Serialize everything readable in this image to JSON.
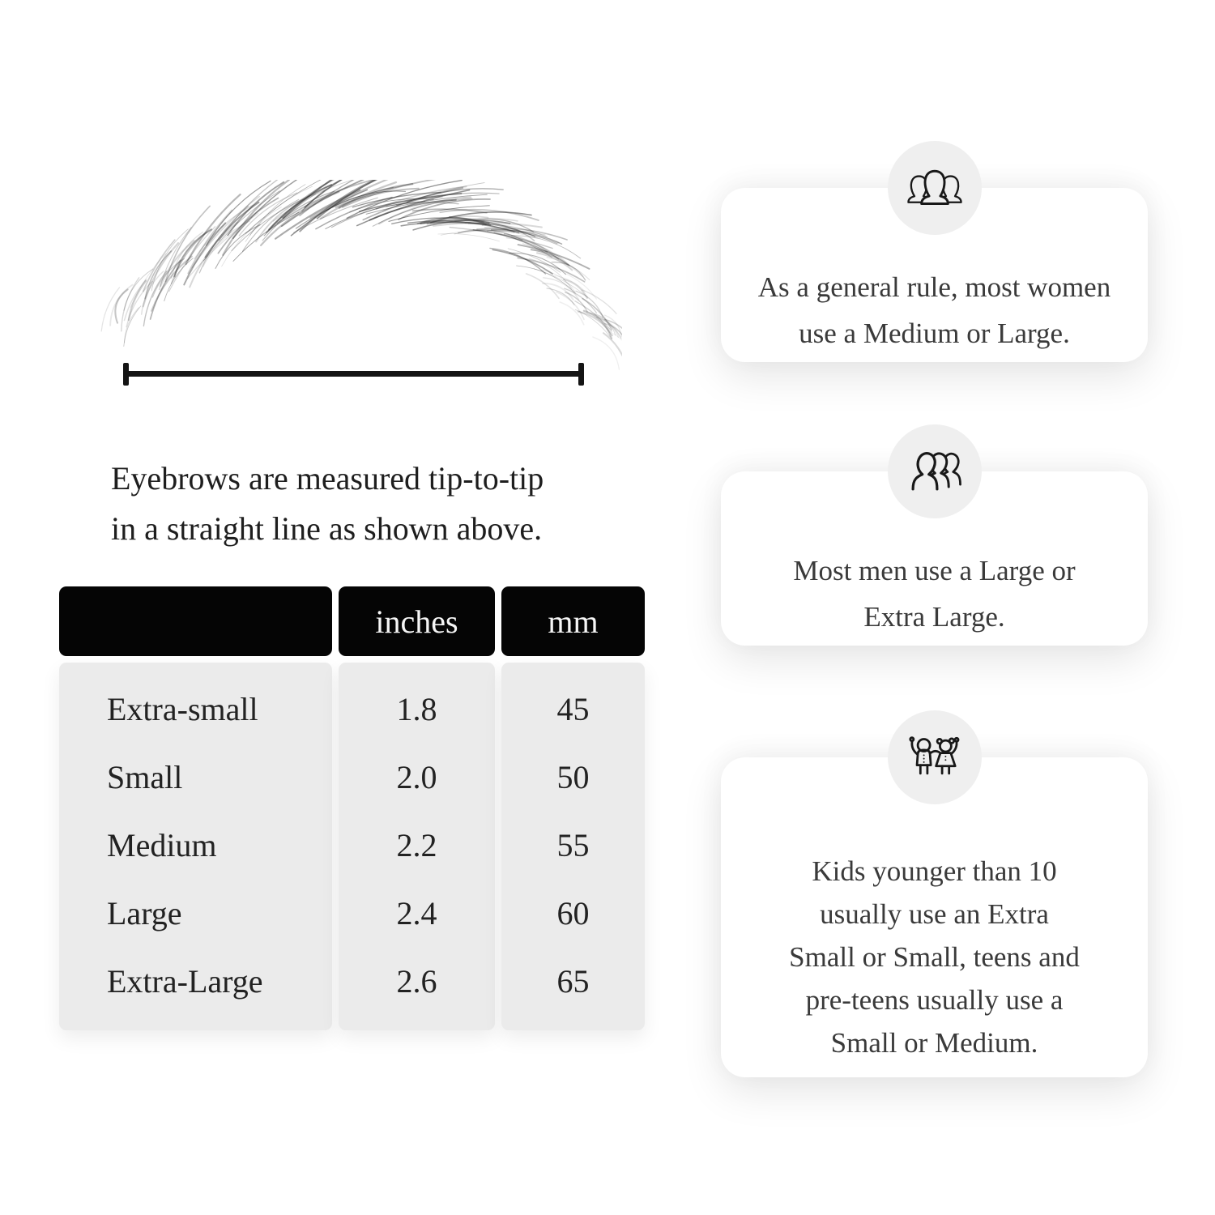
{
  "page": {
    "background": "#ffffff"
  },
  "measurement": {
    "illustration": "eyebrow-sketch",
    "line_color": "#141414",
    "caption_text": "Eyebrows are measured tip-to-tip in a straight line as shown above.",
    "caption_lines": [
      "Eyebrows are measured tip-to-tip",
      "in a straight line as shown above."
    ]
  },
  "size_table": {
    "columns": [
      "",
      "inches",
      "mm"
    ],
    "rows": [
      {
        "label": "Extra-small",
        "inches": "1.8",
        "mm": "45"
      },
      {
        "label": "Small",
        "inches": "2.0",
        "mm": "50"
      },
      {
        "label": "Medium",
        "inches": "2.2",
        "mm": "55"
      },
      {
        "label": "Large",
        "inches": "2.4",
        "mm": "60"
      },
      {
        "label": "Extra-Large",
        "inches": "2.6",
        "mm": "65"
      }
    ],
    "header_bg": "#050505",
    "header_text_color": "#f6f6f6",
    "body_bg": "#ebebeb",
    "text_color": "#222222"
  },
  "cards": [
    {
      "icon": "women-group-icon",
      "text": "As a general rule, most women use a Medium or Large.",
      "lines": [
        "As a general rule, most women",
        "use a Medium or Large."
      ]
    },
    {
      "icon": "men-group-icon",
      "text": "Most men use a Large or Extra Large.",
      "lines": [
        "Most men use a Large or",
        "Extra Large."
      ]
    },
    {
      "icon": "children-icon",
      "text": "Kids younger than 10 usually use an Extra Small or Small, teens and pre-teens usually use a Small or Medium.",
      "lines": [
        "Kids younger than 10",
        "usually use an Extra",
        "Small or Small, teens and",
        "pre-teens usually use a",
        "Small or Medium."
      ]
    }
  ],
  "card_style": {
    "bg": "#ffffff",
    "circle_bg": "#efefef",
    "icon_stroke": "#181818",
    "text_color": "#3a3a3a"
  }
}
